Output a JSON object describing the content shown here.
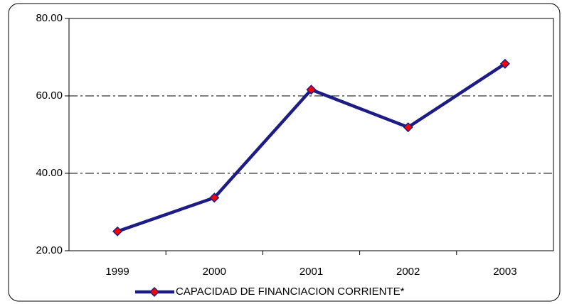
{
  "chart_data": {
    "type": "line",
    "categories": [
      "1999",
      "2000",
      "2001",
      "2002",
      "2003"
    ],
    "series": [
      {
        "name": "CAPACIDAD DE FINANCIACION CORRIENTE*",
        "color": "#1c1c84",
        "marker_color": "#ff0000",
        "values": [
          25.0,
          33.7,
          61.6,
          51.9,
          68.3
        ]
      }
    ],
    "ylim": [
      20,
      80
    ],
    "yticks": [
      {
        "value": 20,
        "label": "20.00"
      },
      {
        "value": 40,
        "label": "40.00"
      },
      {
        "value": 60,
        "label": "60.00"
      },
      {
        "value": 80,
        "label": "80.00"
      }
    ],
    "grid": true
  }
}
